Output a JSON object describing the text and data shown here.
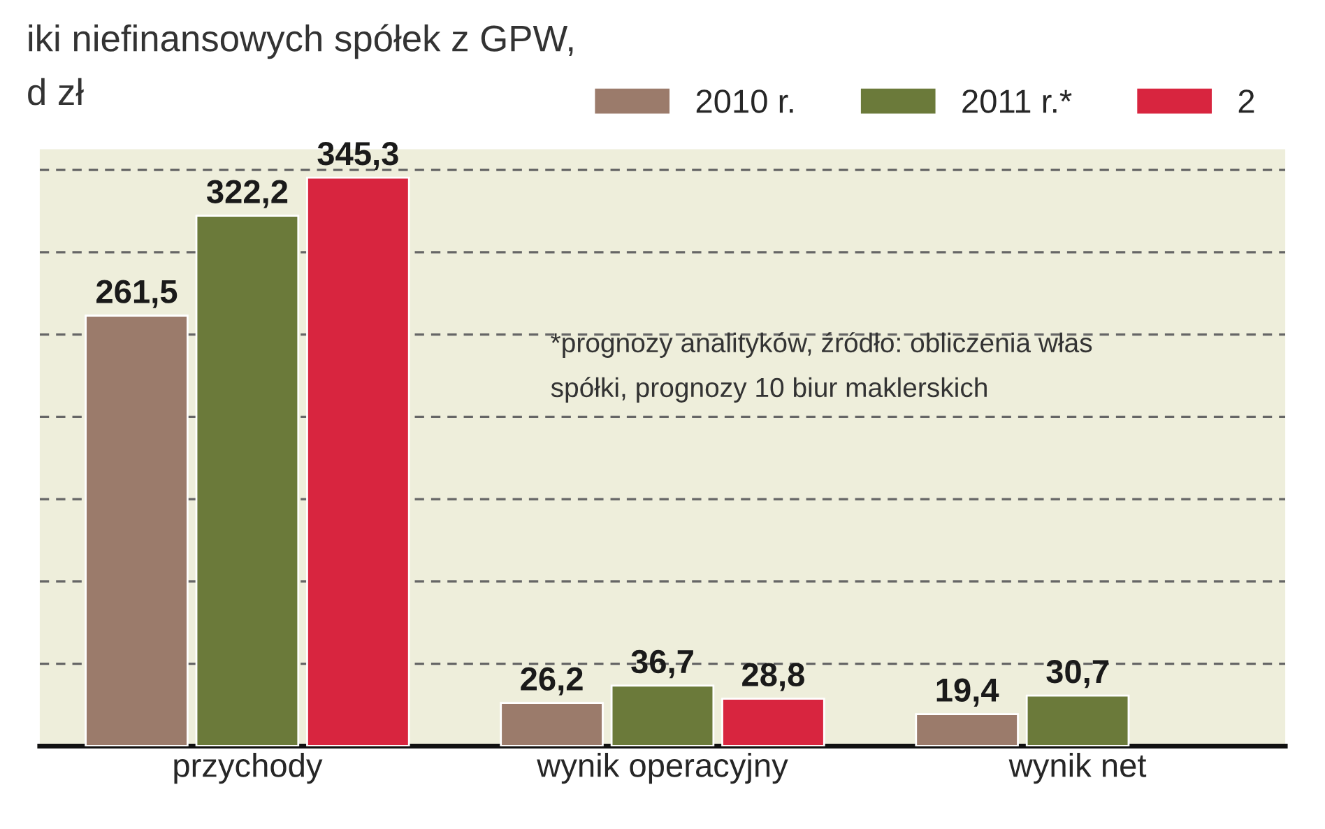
{
  "chart_data": {
    "type": "bar",
    "title": "iki niefinansowych spółek z GPW,",
    "subtitle": "d zł",
    "categories": [
      "przychody",
      "wynik operacyjny",
      "wynik net"
    ],
    "series": [
      {
        "name": "2010 r.",
        "color": "#9b7b6b",
        "values": [
          261.5,
          26.2,
          19.4
        ],
        "value_labels": [
          "261,5",
          "26,2",
          "19,4"
        ]
      },
      {
        "name": "2011 r.*",
        "color": "#6b7a3a",
        "values": [
          322.2,
          36.7,
          30.7
        ],
        "value_labels": [
          "322,2",
          "36,7",
          "30,7"
        ]
      },
      {
        "name": "2",
        "color": "#d8253f",
        "values": [
          345.3,
          28.8,
          null
        ],
        "value_labels": [
          "345,3",
          "28,8",
          null
        ]
      }
    ],
    "tick_labels": "x",
    "grid": "y",
    "legend": "top right",
    "annotations": [
      "*prognozy analityków, źródło: obliczenia włas",
      "spółki, prognozy 10 biur maklerskich"
    ]
  }
}
